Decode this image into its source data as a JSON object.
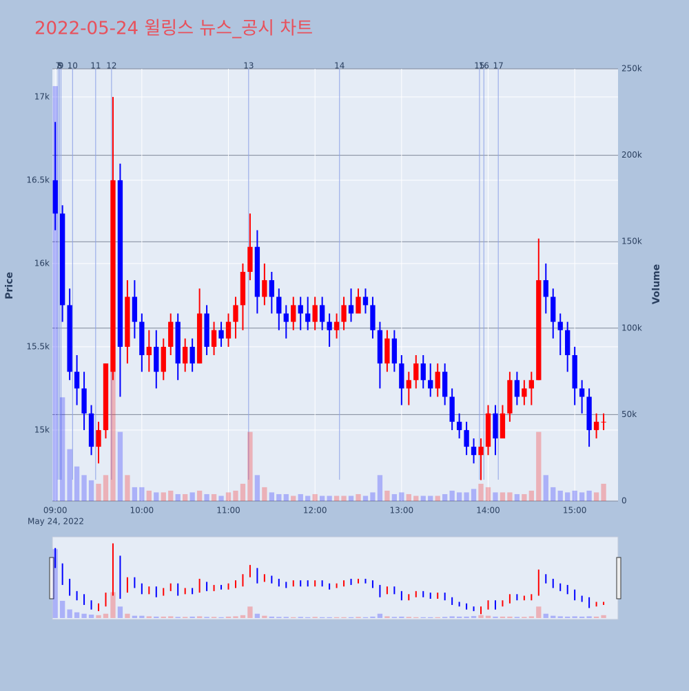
{
  "chart_data": {
    "type": "candlestick",
    "title": "2022-05-24 윌링스 뉴스_공시 차트",
    "y_title": "Price",
    "y2_title": "Volume",
    "x_date_label": "May 24, 2022",
    "increasing_color": "#ff0000",
    "decreasing_color": "#0000ff",
    "xlim": [
      "08:58",
      "15:30"
    ],
    "xticks": [
      "09:00",
      "10:00",
      "11:00",
      "12:00",
      "13:00",
      "14:00",
      "15:00"
    ],
    "ylim": [
      14574,
      17169
    ],
    "yticks": [
      {
        "value": 15000,
        "label": "15k"
      },
      {
        "value": 15500,
        "label": "15.5k"
      },
      {
        "value": 16000,
        "label": "16k"
      },
      {
        "value": 16500,
        "label": "16.5k"
      },
      {
        "value": 17000,
        "label": "17k"
      }
    ],
    "y2lim": [
      0,
      250000
    ],
    "y2ticks": [
      0,
      {
        "value": 50000,
        "label": "50k"
      },
      {
        "value": 100000,
        "label": "100k"
      },
      {
        "value": 150000,
        "label": "150k"
      },
      {
        "value": 200000,
        "label": "200k"
      },
      {
        "value": 250000,
        "label": "250k"
      }
    ],
    "events": [
      {
        "label": "7",
        "x": "09:02"
      },
      {
        "label": "8",
        "x": "09:03"
      },
      {
        "label": "9",
        "x": "09:04"
      },
      {
        "label": "10",
        "x": "09:12"
      },
      {
        "label": "11",
        "x": "09:28"
      },
      {
        "label": "12",
        "x": "09:39"
      },
      {
        "label": "13",
        "x": "11:14"
      },
      {
        "label": "14",
        "x": "12:17"
      },
      {
        "label": "15",
        "x": "13:54"
      },
      {
        "label": "16",
        "x": "13:57"
      },
      {
        "label": "17",
        "x": "14:07"
      }
    ],
    "x": [
      "09:00",
      "09:05",
      "09:10",
      "09:15",
      "09:20",
      "09:25",
      "09:30",
      "09:35",
      "09:40",
      "09:45",
      "09:50",
      "09:55",
      "10:00",
      "10:05",
      "10:10",
      "10:15",
      "10:20",
      "10:25",
      "10:30",
      "10:35",
      "10:40",
      "10:45",
      "10:50",
      "10:55",
      "11:00",
      "11:05",
      "11:10",
      "11:15",
      "11:20",
      "11:25",
      "11:30",
      "11:35",
      "11:40",
      "11:45",
      "11:50",
      "11:55",
      "12:00",
      "12:05",
      "12:10",
      "12:15",
      "12:20",
      "12:25",
      "12:30",
      "12:35",
      "12:40",
      "12:45",
      "12:50",
      "12:55",
      "13:00",
      "13:05",
      "13:10",
      "13:15",
      "13:20",
      "13:25",
      "13:30",
      "13:35",
      "13:40",
      "13:45",
      "13:50",
      "13:55",
      "14:00",
      "14:05",
      "14:10",
      "14:15",
      "14:20",
      "14:25",
      "14:30",
      "14:35",
      "14:40",
      "14:45",
      "14:50",
      "14:55",
      "15:00",
      "15:05",
      "15:10",
      "15:15",
      "15:20"
    ],
    "open": [
      16500,
      16300,
      15750,
      15350,
      15250,
      15100,
      14900,
      15000,
      15350,
      16500,
      15500,
      15800,
      15650,
      15450,
      15500,
      15350,
      15500,
      15650,
      15400,
      15500,
      15400,
      15700,
      15500,
      15600,
      15550,
      15650,
      15750,
      15950,
      16100,
      15800,
      15900,
      15800,
      15700,
      15650,
      15750,
      15700,
      15650,
      15750,
      15650,
      15600,
      15650,
      15750,
      15700,
      15800,
      15750,
      15600,
      15400,
      15550,
      15400,
      15250,
      15300,
      15400,
      15300,
      15250,
      15350,
      15200,
      15050,
      15000,
      14900,
      14850,
      14900,
      15100,
      14950,
      15100,
      15300,
      15200,
      15250,
      15300,
      15900,
      15800,
      15650,
      15600,
      15450,
      15250,
      15200,
      15000,
      15050
    ],
    "high": [
      16850,
      16350,
      15850,
      15450,
      15350,
      15150,
      15050,
      15400,
      17000,
      16600,
      15900,
      15900,
      15700,
      15600,
      15600,
      15550,
      15700,
      15700,
      15550,
      15550,
      15850,
      15750,
      15650,
      15650,
      15700,
      15800,
      16000,
      16300,
      16200,
      16000,
      15950,
      15850,
      15750,
      15800,
      15800,
      15800,
      15800,
      15800,
      15700,
      15700,
      15800,
      15850,
      15850,
      15850,
      15800,
      15650,
      15600,
      15600,
      15450,
      15350,
      15450,
      15450,
      15400,
      15400,
      15400,
      15250,
      15100,
      15050,
      14950,
      14950,
      15150,
      15150,
      15150,
      15350,
      15350,
      15300,
      15350,
      16150,
      16000,
      15850,
      15700,
      15650,
      15500,
      15300,
      15250,
      15100,
      15100
    ],
    "low": [
      16200,
      15650,
      15300,
      15150,
      15000,
      14850,
      14800,
      14950,
      15300,
      15200,
      15400,
      15550,
      15350,
      15350,
      15250,
      15300,
      15450,
      15300,
      15350,
      15350,
      15400,
      15450,
      15450,
      15500,
      15500,
      15550,
      15600,
      15900,
      15700,
      15750,
      15700,
      15600,
      15550,
      15600,
      15600,
      15600,
      15600,
      15600,
      15500,
      15550,
      15600,
      15650,
      15700,
      15700,
      15550,
      15250,
      15350,
      15350,
      15150,
      15150,
      15250,
      15250,
      15200,
      15200,
      15150,
      15000,
      14950,
      14850,
      14800,
      14700,
      14850,
      14850,
      14950,
      15050,
      15150,
      15150,
      15150,
      15300,
      15700,
      15550,
      15450,
      15350,
      15150,
      15100,
      14900,
      14950,
      15000
    ],
    "close": [
      16300,
      15750,
      15350,
      15250,
      15100,
      14900,
      15000,
      15400,
      16500,
      15500,
      15800,
      15650,
      15450,
      15500,
      15350,
      15500,
      15650,
      15400,
      15500,
      15400,
      15700,
      15500,
      15600,
      15550,
      15650,
      15750,
      15950,
      16100,
      15800,
      15900,
      15800,
      15700,
      15650,
      15750,
      15700,
      15650,
      15750,
      15650,
      15600,
      15650,
      15750,
      15700,
      15800,
      15750,
      15600,
      15400,
      15550,
      15400,
      15250,
      15300,
      15400,
      15300,
      15250,
      15350,
      15200,
      15050,
      15000,
      14900,
      14850,
      14900,
      15100,
      14950,
      15100,
      15300,
      15200,
      15250,
      15300,
      15900,
      15800,
      15650,
      15600,
      15450,
      15250,
      15200,
      15000,
      15050,
      15050
    ],
    "volume": [
      240000,
      60000,
      30000,
      20000,
      15000,
      12000,
      10000,
      15000,
      90000,
      40000,
      15000,
      8000,
      8000,
      6000,
      5000,
      5000,
      6000,
      4000,
      4000,
      5000,
      6000,
      4000,
      4000,
      3000,
      5000,
      6000,
      10000,
      40000,
      15000,
      8000,
      5000,
      4000,
      4000,
      3000,
      4000,
      3000,
      4000,
      3000,
      3000,
      3000,
      3000,
      3000,
      4000,
      3000,
      5000,
      15000,
      6000,
      4000,
      5000,
      4000,
      3000,
      3000,
      3000,
      3000,
      4000,
      6000,
      5000,
      5000,
      7000,
      10000,
      8000,
      5000,
      5000,
      5000,
      4000,
      4000,
      6000,
      40000,
      15000,
      8000,
      6000,
      5000,
      6000,
      5000,
      6000,
      5000,
      10000
    ]
  }
}
